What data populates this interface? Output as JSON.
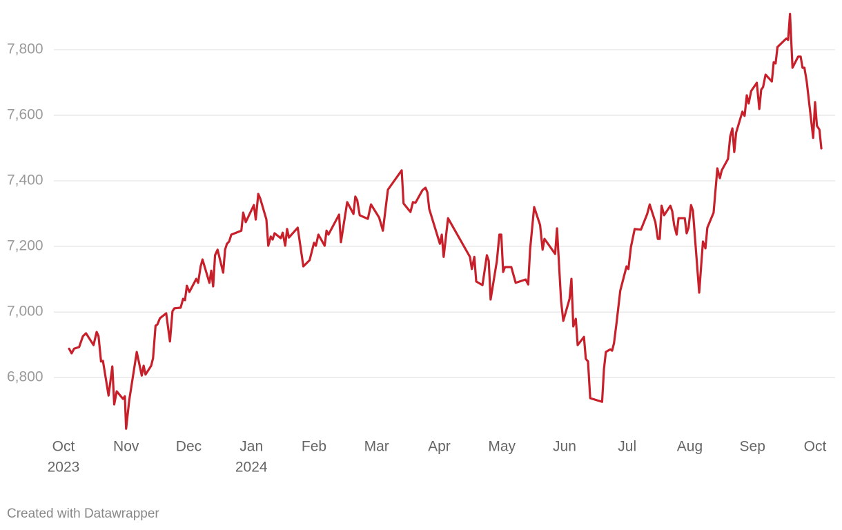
{
  "chart_data": {
    "type": "line",
    "credit": "Created with Datawrapper",
    "xlim": [
      -0.154,
      12.32
    ],
    "ylim": [
      6636,
      7920
    ],
    "xticks": [
      {
        "value": 0,
        "label": "Oct"
      },
      {
        "value": 1,
        "label": "Nov"
      },
      {
        "value": 2,
        "label": "Dec"
      },
      {
        "value": 3,
        "label": "Jan"
      },
      {
        "value": 4,
        "label": "Feb"
      },
      {
        "value": 5,
        "label": "Mar"
      },
      {
        "value": 6,
        "label": "Apr"
      },
      {
        "value": 7,
        "label": "May"
      },
      {
        "value": 8,
        "label": "Jun"
      },
      {
        "value": 9,
        "label": "Jul"
      },
      {
        "value": 10,
        "label": "Aug"
      },
      {
        "value": 11,
        "label": "Sep"
      },
      {
        "value": 12,
        "label": "Oct"
      }
    ],
    "year_labels": [
      {
        "value": 0,
        "label": "2023"
      },
      {
        "value": 3,
        "label": "2024"
      }
    ],
    "yticks": [
      {
        "value": 6800,
        "label": "6,800"
      },
      {
        "value": 7000,
        "label": "7,000"
      },
      {
        "value": 7200,
        "label": "7,200"
      },
      {
        "value": 7400,
        "label": "7,400"
      },
      {
        "value": 7600,
        "label": "7,600"
      },
      {
        "value": 7800,
        "label": "7,800"
      }
    ],
    "grid": true,
    "series": [
      {
        "color": "#c8202a",
        "x": [
          0.09,
          0.13,
          0.17,
          0.25,
          0.31,
          0.36,
          0.48,
          0.53,
          0.56,
          0.6,
          0.63,
          0.72,
          0.78,
          0.81,
          0.85,
          0.95,
          0.98,
          1.0,
          1.05,
          1.17,
          1.25,
          1.28,
          1.31,
          1.4,
          1.43,
          1.47,
          1.5,
          1.54,
          1.64,
          1.7,
          1.74,
          1.77,
          1.87,
          1.91,
          1.94,
          1.97,
          2.01,
          2.12,
          2.15,
          2.19,
          2.22,
          2.33,
          2.36,
          2.39,
          2.42,
          2.46,
          2.55,
          2.58,
          2.61,
          2.645,
          2.68,
          2.84,
          2.87,
          2.91,
          3.04,
          3.07,
          3.11,
          3.14,
          3.24,
          3.27,
          3.31,
          3.34,
          3.37,
          3.47,
          3.5,
          3.54,
          3.57,
          3.6,
          3.74,
          3.83,
          3.93,
          4.0,
          4.03,
          4.07,
          4.17,
          4.2,
          4.23,
          4.4,
          4.43,
          4.53,
          4.63,
          4.66,
          4.69,
          4.73,
          4.86,
          4.91,
          5.04,
          5.1,
          5.18,
          5.4,
          5.43,
          5.54,
          5.58,
          5.62,
          5.73,
          5.78,
          5.81,
          5.84,
          6.01,
          6.04,
          6.07,
          6.14,
          6.49,
          6.52,
          6.56,
          6.59,
          6.69,
          6.76,
          6.79,
          6.82,
          6.92,
          6.96,
          6.99,
          7.02,
          7.05,
          7.15,
          7.22,
          7.38,
          7.42,
          7.45,
          7.515,
          7.61,
          7.65,
          7.68,
          7.85,
          7.88,
          7.91,
          7.945,
          7.98,
          8.08,
          8.11,
          8.14,
          8.18,
          8.21,
          8.31,
          8.34,
          8.375,
          8.41,
          8.6,
          8.63,
          8.66,
          8.73,
          8.76,
          8.79,
          8.83,
          8.89,
          8.99,
          9.02,
          9.06,
          9.12,
          9.22,
          9.32,
          9.36,
          9.45,
          9.49,
          9.52,
          9.55,
          9.59,
          9.69,
          9.72,
          9.75,
          9.79,
          9.82,
          9.92,
          9.95,
          9.98,
          10.02,
          10.05,
          10.15,
          10.21,
          10.25,
          10.28,
          10.38,
          10.44,
          10.48,
          10.51,
          10.61,
          10.645,
          10.68,
          10.71,
          10.74,
          10.84,
          10.875,
          10.91,
          10.94,
          10.98,
          11.07,
          11.11,
          11.14,
          11.17,
          11.21,
          11.31,
          11.34,
          11.37,
          11.4,
          11.54,
          11.57,
          11.6,
          11.64,
          11.73,
          11.77,
          11.8,
          11.83,
          11.867,
          11.97,
          12.0,
          12.03,
          12.07,
          12.1
        ],
        "values": [
          6888,
          6874,
          6888,
          6893,
          6926,
          6935,
          6899,
          6939,
          6926,
          6849,
          6851,
          6745,
          6834,
          6718,
          6758,
          6735,
          6743,
          6644,
          6731,
          6878,
          6806,
          6836,
          6809,
          6836,
          6859,
          6958,
          6962,
          6981,
          6996,
          6910,
          7002,
          7011,
          7013,
          7040,
          7036,
          7080,
          7061,
          7101,
          7089,
          7139,
          7160,
          7089,
          7126,
          7078,
          7173,
          7190,
          7120,
          7190,
          7208,
          7215,
          7236,
          7248,
          7303,
          7274,
          7326,
          7282,
          7360,
          7347,
          7282,
          7202,
          7230,
          7221,
          7240,
          7225,
          7242,
          7202,
          7253,
          7227,
          7257,
          7139,
          7158,
          7211,
          7202,
          7236,
          7202,
          7248,
          7236,
          7297,
          7213,
          7335,
          7299,
          7352,
          7341,
          7295,
          7284,
          7328,
          7288,
          7248,
          7373,
          7432,
          7331,
          7305,
          7335,
          7333,
          7371,
          7379,
          7365,
          7314,
          7208,
          7236,
          7168,
          7286,
          7168,
          7131,
          7168,
          7093,
          7082,
          7173,
          7156,
          7038,
          7156,
          7236,
          7236,
          7122,
          7137,
          7137,
          7089,
          7099,
          7084,
          7190,
          7320,
          7265,
          7190,
          7223,
          7177,
          7255,
          7152,
          7034,
          6973,
          7040,
          7101,
          6956,
          6979,
          6899,
          6924,
          6857,
          6849,
          6737,
          6726,
          6827,
          6878,
          6886,
          6882,
          6905,
          6966,
          7065,
          7139,
          7131,
          7198,
          7253,
          7251,
          7299,
          7328,
          7274,
          7223,
          7223,
          7324,
          7295,
          7324,
          7307,
          7265,
          7236,
          7286,
          7286,
          7240,
          7257,
          7326,
          7309,
          7059,
          7215,
          7194,
          7257,
          7303,
          7438,
          7408,
          7432,
          7467,
          7535,
          7560,
          7488,
          7547,
          7611,
          7598,
          7661,
          7636,
          7674,
          7699,
          7619,
          7678,
          7686,
          7724,
          7703,
          7762,
          7758,
          7808,
          7834,
          7830,
          7909,
          7745,
          7779,
          7779,
          7745,
          7745,
          7703,
          7531,
          7640,
          7568,
          7556,
          7499
        ]
      }
    ]
  }
}
